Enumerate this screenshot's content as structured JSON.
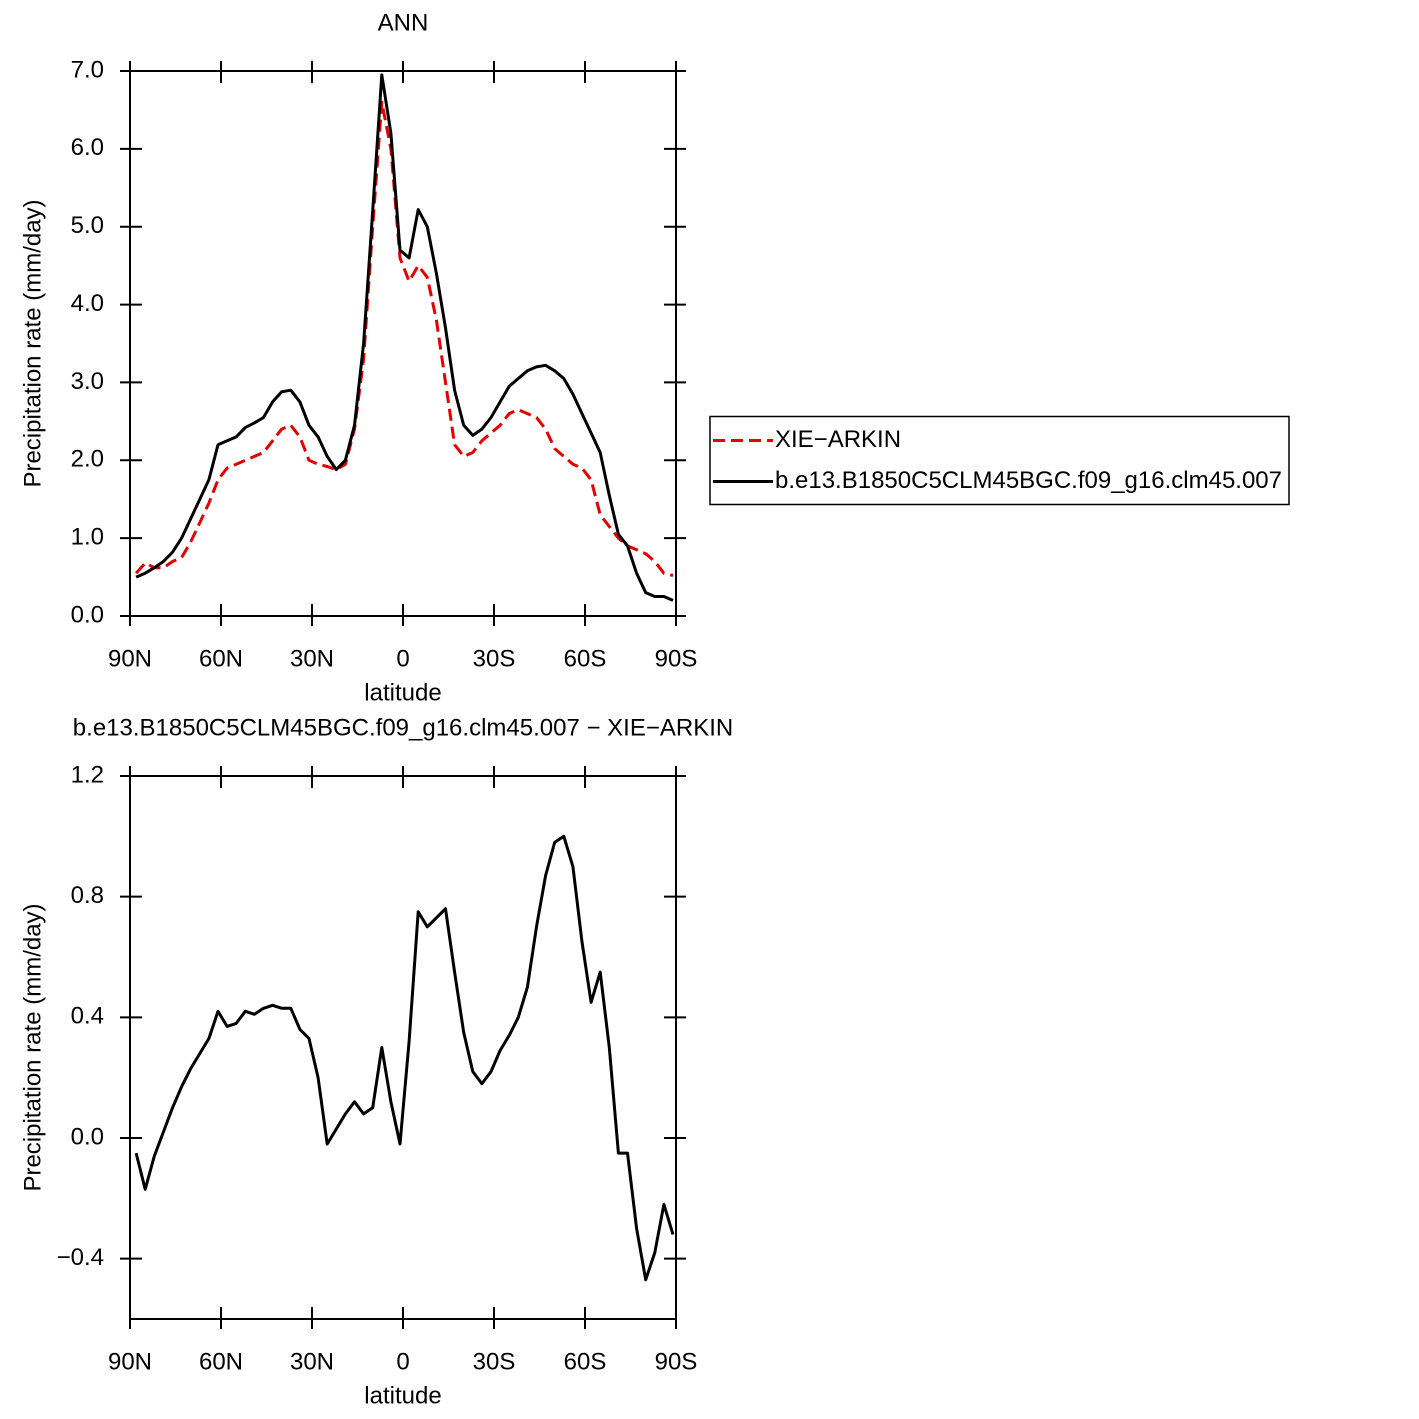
{
  "chart_data": [
    {
      "type": "line",
      "title": "ANN",
      "xlabel": "latitude",
      "ylabel": "Precipitation rate (mm/day)",
      "x": [
        88,
        85,
        82,
        79,
        76,
        73,
        70,
        67,
        64,
        61,
        58,
        55,
        52,
        49,
        46,
        43,
        40,
        37,
        34,
        31,
        28,
        25,
        22,
        19,
        16,
        13,
        10,
        7,
        4,
        1,
        -2,
        -5,
        -8,
        -11,
        -14,
        -17,
        -20,
        -23,
        -26,
        -29,
        -32,
        -35,
        -38,
        -41,
        -44,
        -47,
        -50,
        -53,
        -56,
        -59,
        -62,
        -65,
        -68,
        -71,
        -74,
        -77,
        -80,
        -83,
        -86,
        -89
      ],
      "xlim": [
        90,
        -90
      ],
      "xticks": [
        {
          "value": 90,
          "label": "90N"
        },
        {
          "value": 60,
          "label": "60N"
        },
        {
          "value": 30,
          "label": "30N"
        },
        0,
        {
          "value": -30,
          "label": "30S"
        },
        {
          "value": -60,
          "label": "60S"
        },
        {
          "value": -90,
          "label": "90S"
        }
      ],
      "ylim": [
        0,
        7
      ],
      "yticks": [
        {
          "value": 0,
          "label": "0.0"
        },
        {
          "value": 1,
          "label": "1.0"
        },
        {
          "value": 2,
          "label": "2.0"
        },
        {
          "value": 3,
          "label": "3.0"
        },
        {
          "value": 4,
          "label": "4.0"
        },
        {
          "value": 5,
          "label": "5.0"
        },
        {
          "value": 6,
          "label": "6.0"
        },
        {
          "value": 7,
          "label": "7.0"
        }
      ],
      "legend": "right",
      "series": [
        {
          "name": "XIE−ARKIN",
          "color": "#e00000",
          "dashed": true,
          "values": [
            0.55,
            0.68,
            0.62,
            0.62,
            0.7,
            0.75,
            0.95,
            1.2,
            1.45,
            1.75,
            1.9,
            1.95,
            2.0,
            2.05,
            2.1,
            2.25,
            2.4,
            2.45,
            2.3,
            2.0,
            1.95,
            1.92,
            1.88,
            1.95,
            2.4,
            3.3,
            5.0,
            6.6,
            6.0,
            4.6,
            4.3,
            4.5,
            4.35,
            3.8,
            3.0,
            2.2,
            2.05,
            2.1,
            2.25,
            2.35,
            2.45,
            2.6,
            2.65,
            2.6,
            2.55,
            2.4,
            2.15,
            2.05,
            1.95,
            1.9,
            1.75,
            1.3,
            1.15,
            1.0,
            0.9,
            0.85,
            0.8,
            0.7,
            0.55,
            0.52
          ]
        },
        {
          "name": "b.e13.B1850C5CLM45BGC.f09_g16.clm45.007",
          "color": "#000000",
          "dashed": false,
          "values": [
            0.5,
            0.55,
            0.62,
            0.7,
            0.82,
            1.0,
            1.25,
            1.5,
            1.75,
            2.2,
            2.25,
            2.3,
            2.42,
            2.48,
            2.55,
            2.75,
            2.88,
            2.9,
            2.75,
            2.45,
            2.3,
            2.05,
            1.88,
            2.0,
            2.45,
            3.5,
            5.2,
            6.95,
            6.2,
            4.7,
            4.6,
            5.22,
            5.0,
            4.4,
            3.7,
            2.9,
            2.45,
            2.32,
            2.4,
            2.55,
            2.75,
            2.95,
            3.05,
            3.15,
            3.2,
            3.22,
            3.15,
            3.05,
            2.85,
            2.6,
            2.35,
            2.1,
            1.55,
            1.05,
            0.9,
            0.55,
            0.3,
            0.25,
            0.25,
            0.2
          ]
        }
      ]
    },
    {
      "type": "line",
      "title": "b.e13.B1850C5CLM45BGC.f09_g16.clm45.007 − XIE−ARKIN",
      "xlabel": "latitude",
      "ylabel": "Precipitation rate (mm/day)",
      "x": [
        88,
        85,
        82,
        79,
        76,
        73,
        70,
        67,
        64,
        61,
        58,
        55,
        52,
        49,
        46,
        43,
        40,
        37,
        34,
        31,
        28,
        25,
        22,
        19,
        16,
        13,
        10,
        7,
        4,
        1,
        -2,
        -5,
        -8,
        -11,
        -14,
        -17,
        -20,
        -23,
        -26,
        -29,
        -32,
        -35,
        -38,
        -41,
        -44,
        -47,
        -50,
        -53,
        -56,
        -59,
        -62,
        -65,
        -68,
        -71,
        -74,
        -77,
        -80,
        -83,
        -86,
        -89
      ],
      "xlim": [
        90,
        -90
      ],
      "xticks": [
        {
          "value": 90,
          "label": "90N"
        },
        {
          "value": 60,
          "label": "60N"
        },
        {
          "value": 30,
          "label": "30N"
        },
        0,
        {
          "value": -30,
          "label": "30S"
        },
        {
          "value": -60,
          "label": "60S"
        },
        {
          "value": -90,
          "label": "90S"
        }
      ],
      "ylim": [
        -0.6,
        1.2
      ],
      "yticks": [
        {
          "value": -0.4,
          "label": "−0.4"
        },
        {
          "value": 0,
          "label": "0.0"
        },
        0.4,
        0.8,
        1.2
      ],
      "series": [
        {
          "color": "#000000",
          "dashed": false,
          "values": [
            -0.05,
            -0.17,
            -0.06,
            0.02,
            0.1,
            0.17,
            0.23,
            0.28,
            0.33,
            0.42,
            0.37,
            0.38,
            0.42,
            0.41,
            0.43,
            0.44,
            0.43,
            0.43,
            0.36,
            0.33,
            0.2,
            -0.02,
            0.03,
            0.08,
            0.12,
            0.08,
            0.1,
            0.3,
            0.12,
            -0.02,
            0.32,
            0.75,
            0.7,
            0.73,
            0.76,
            0.55,
            0.35,
            0.22,
            0.18,
            0.22,
            0.29,
            0.34,
            0.4,
            0.5,
            0.7,
            0.87,
            0.98,
            1.0,
            0.9,
            0.65,
            0.45,
            0.55,
            0.3,
            -0.05,
            -0.05,
            -0.3,
            -0.47,
            -0.38,
            -0.22,
            -0.32
          ]
        }
      ]
    }
  ]
}
